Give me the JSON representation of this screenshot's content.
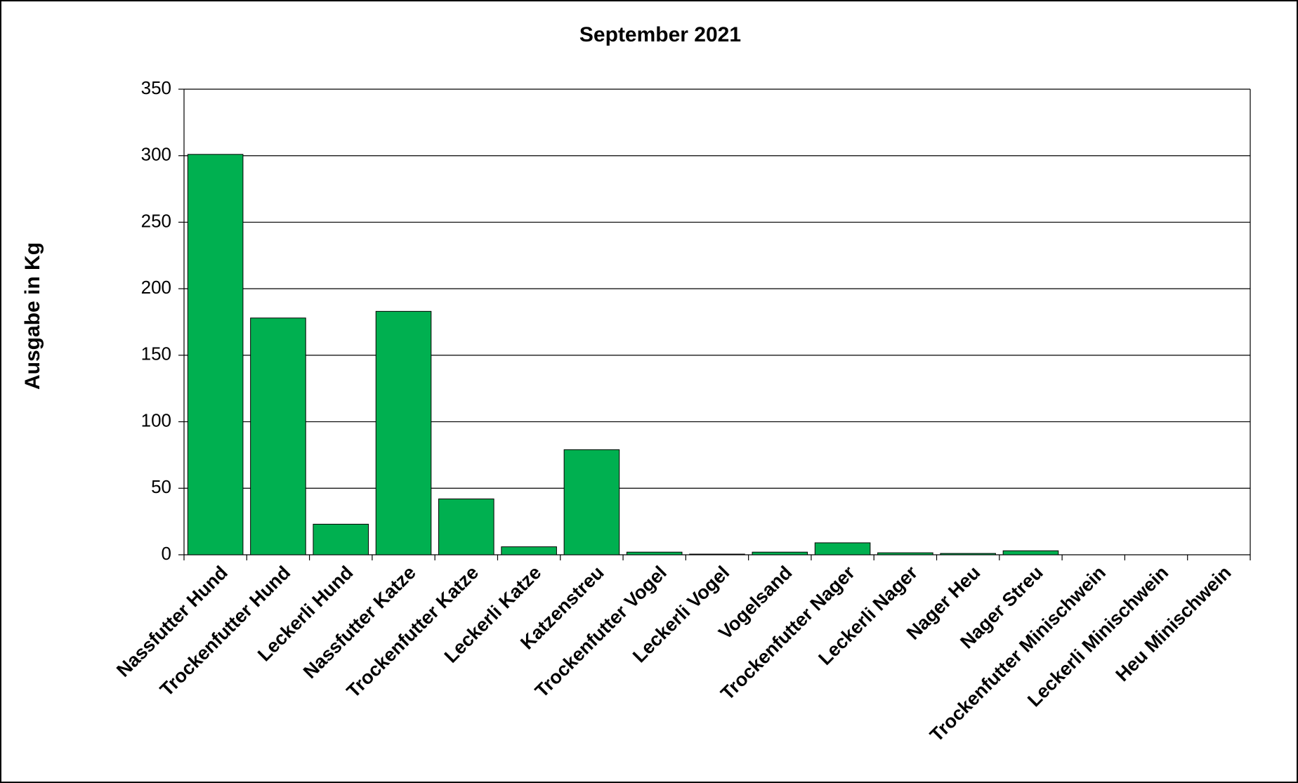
{
  "chart_data": {
    "type": "bar",
    "title": "September 2021",
    "y_label": "Ausgabe in Kg",
    "categories": [
      "Nassfutter Hund",
      "Trockenfutter Hund",
      "Leckerli Hund",
      "Nassfutter Katze",
      "Trockenfutter Katze",
      "Leckerli Katze",
      "Katzenstreu",
      "Trockenfutter Vogel",
      "Leckerli Vogel",
      "Vogelsand",
      "Trockenfutter Nager",
      "Leckerli Nager",
      "Nager Heu",
      "Nager Streu",
      "Trockenfutter Minischwein",
      "Leckerli Minischwein",
      "Heu Minischwein"
    ],
    "values": [
      301,
      178,
      23,
      183,
      42,
      6,
      79,
      2,
      0.5,
      2,
      9,
      1.5,
      1,
      3,
      0,
      0,
      0
    ],
    "color": "#00b050",
    "ylim": [
      0,
      350
    ],
    "yticks": [
      0,
      50,
      100,
      150,
      200,
      250,
      300,
      350
    ],
    "grid": true
  }
}
